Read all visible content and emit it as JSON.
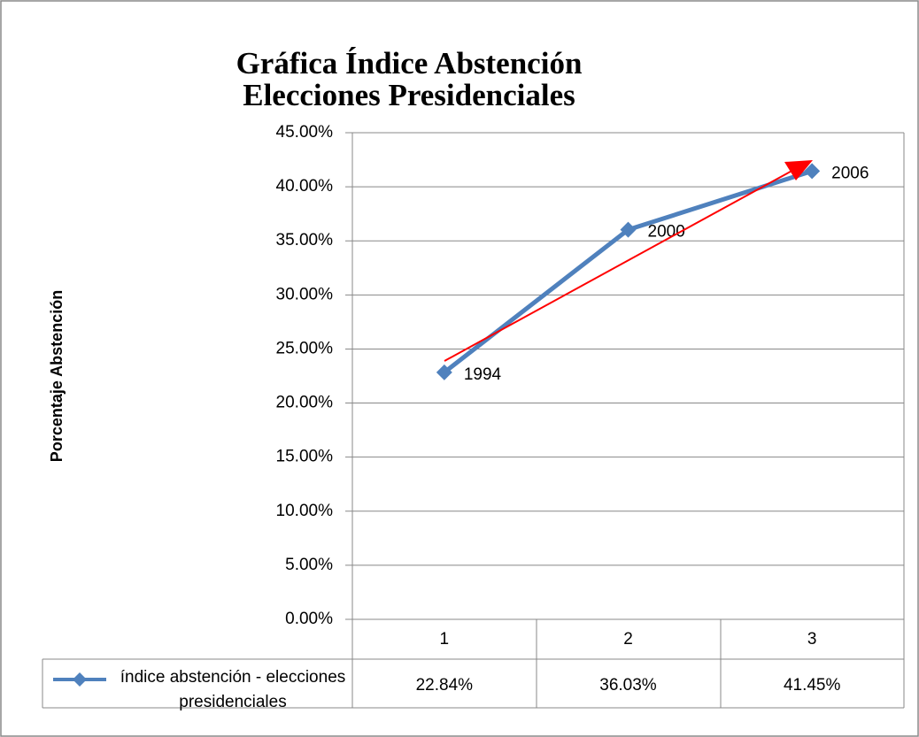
{
  "chart_data": {
    "type": "line",
    "title": [
      "Gráfica Índice Abstención",
      "Elecciones Presidenciales"
    ],
    "y_label": "Porcentaje Abstención",
    "categories": [
      "1",
      "2",
      "3"
    ],
    "series": [
      {
        "name": "índice abstención - elecciones presidenciales",
        "color": "#4f81bd",
        "values": [
          22.84,
          36.03,
          41.45
        ],
        "value_labels": [
          "22.84%",
          "36.03%",
          "41.45%"
        ],
        "point_labels": [
          "1994",
          "2000",
          "2006"
        ]
      }
    ],
    "ylim": [
      0,
      45
    ],
    "yticks": [
      {
        "value": 0,
        "label": "0.00%"
      },
      {
        "value": 5,
        "label": "5.00%"
      },
      {
        "value": 10,
        "label": "10.00%"
      },
      {
        "value": 15,
        "label": "15.00%"
      },
      {
        "value": 20,
        "label": "20.00%"
      },
      {
        "value": 25,
        "label": "25.00%"
      },
      {
        "value": 30,
        "label": "30.00%"
      },
      {
        "value": 35,
        "label": "35.00%"
      },
      {
        "value": 40,
        "label": "40.00%"
      },
      {
        "value": 45,
        "label": "45.00%"
      }
    ],
    "grid": true
  }
}
